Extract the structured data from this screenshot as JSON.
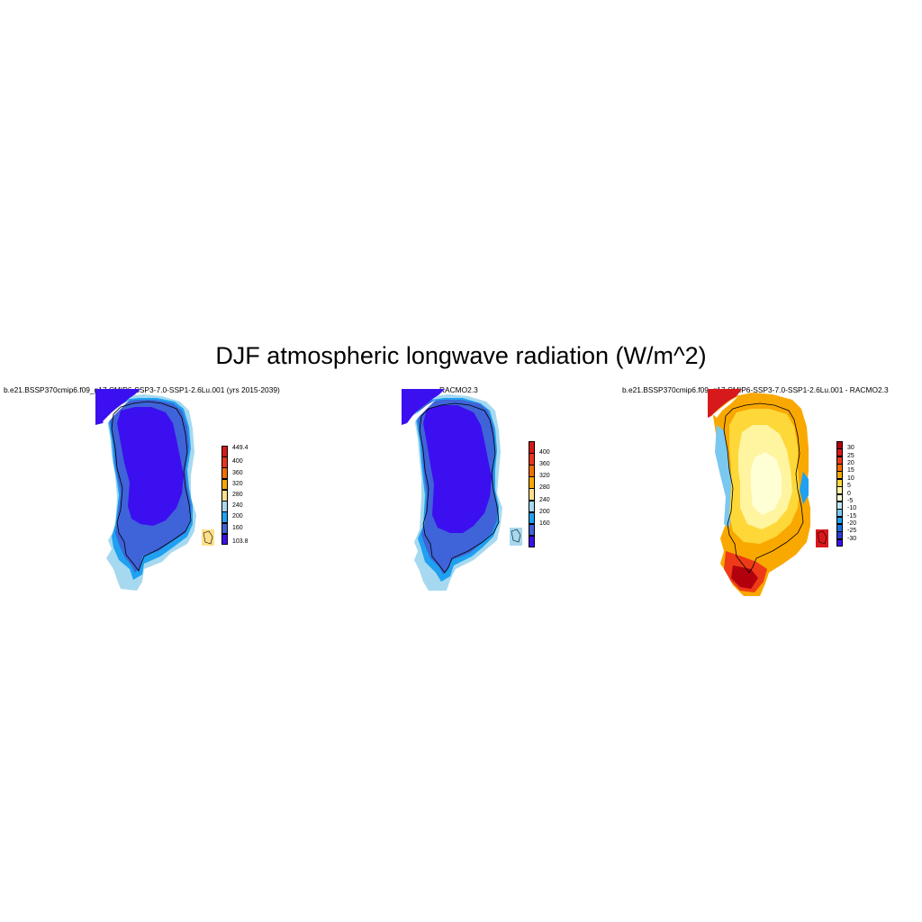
{
  "title": "DJF atmospheric longwave radiation (W/m^2)",
  "panels": [
    {
      "title": "b.e21.BSSP370cmip6.f09_g17.CMIP6-SSP3-7.0-SSP1-2.6Lu.001 (yrs 2015-2039)",
      "colorbar": {
        "labels": [
          "449.4",
          "400",
          "360",
          "320",
          "280",
          "240",
          "200",
          "160",
          "103.8"
        ],
        "colors": [
          "#d7191c",
          "#e8361e",
          "#f46d00",
          "#f9a800",
          "#fee08b",
          "#a6d9f0",
          "#1fa0f0",
          "#3f63d8",
          "#3b0ff0"
        ]
      }
    },
    {
      "title": "RACMO2.3",
      "colorbar": {
        "labels": [
          "400",
          "360",
          "320",
          "280",
          "240",
          "200",
          "160"
        ],
        "colors": [
          "#d7191c",
          "#e8361e",
          "#f46d00",
          "#f9a800",
          "#fee08b",
          "#a6d9f0",
          "#1fa0f0",
          "#3f63d8",
          "#3b0ff0"
        ]
      }
    },
    {
      "title": "b.e21.BSSP370cmip6.f09_g17.CMIP6-SSP3-7.0-SSP1-2.6Lu.001 - RACMO2.3",
      "colorbar": {
        "labels": [
          "30",
          "25",
          "20",
          "15",
          "10",
          "5",
          "0",
          "-5",
          "-10",
          "-15",
          "-20",
          "-25",
          "-30"
        ],
        "colors": [
          "#b2000e",
          "#d7191c",
          "#ee3a17",
          "#f46d00",
          "#f9a800",
          "#fdd838",
          "#fff4a0",
          "#ffffd6",
          "#bfe6f4",
          "#7ac8f0",
          "#1fa0f0",
          "#1a6fe0",
          "#2a3cd8",
          "#3b0ff0"
        ]
      }
    }
  ],
  "chart_data": [
    {
      "type": "heatmap",
      "title": "b.e21.BSSP370cmip6.f09_g17.CMIP6-SSP3-7.0-SSP1-2.6Lu.001 (yrs 2015-2039)",
      "region": "Greenland",
      "season": "DJF",
      "colorbar_min": 103.8,
      "colorbar_max": 449.4,
      "colorbar_levels": [
        160,
        200,
        240,
        280,
        320,
        360,
        400
      ]
    },
    {
      "type": "heatmap",
      "title": "RACMO2.3",
      "region": "Greenland",
      "season": "DJF",
      "colorbar_levels": [
        160,
        200,
        240,
        280,
        320,
        360,
        400
      ]
    },
    {
      "type": "heatmap",
      "title": "b.e21.BSSP370cmip6.f09_g17.CMIP6-SSP3-7.0-SSP1-2.6Lu.001 - RACMO2.3",
      "region": "Greenland",
      "season": "DJF",
      "colorbar_levels": [
        -30,
        -25,
        -20,
        -15,
        -10,
        -5,
        0,
        5,
        10,
        15,
        20,
        25,
        30
      ]
    }
  ]
}
